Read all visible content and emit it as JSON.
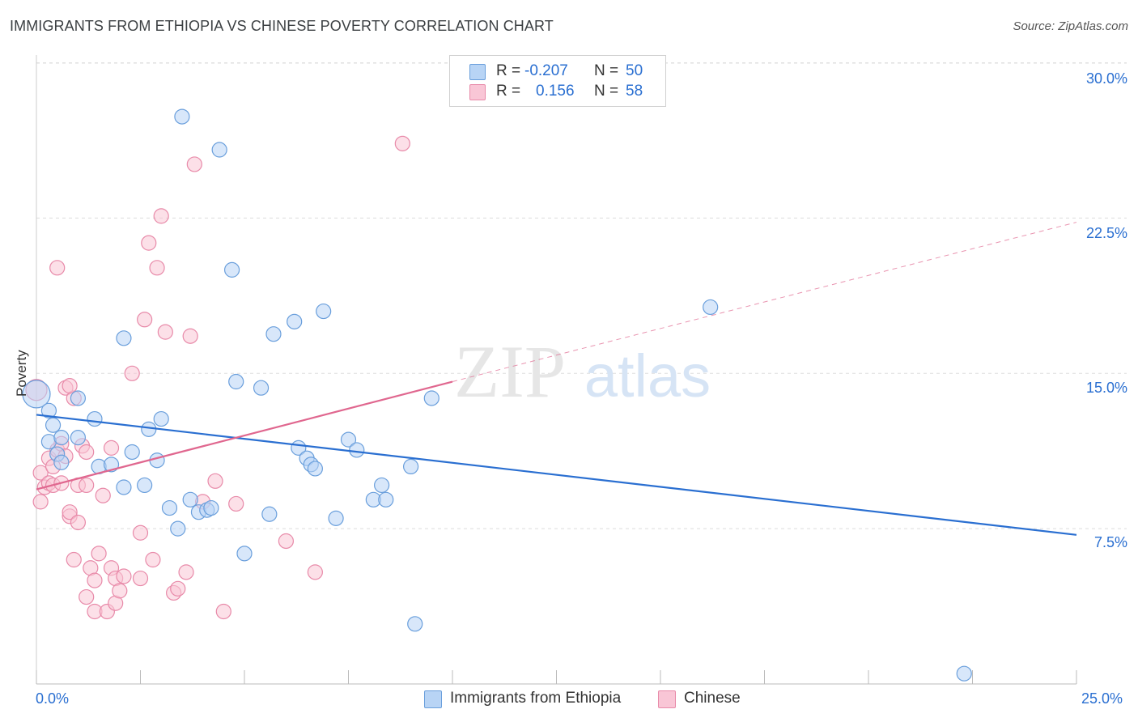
{
  "title": "IMMIGRANTS FROM ETHIOPIA VS CHINESE POVERTY CORRELATION CHART",
  "source": "Source: ZipAtlas.com",
  "watermark": {
    "zip": "ZIP",
    "atlas": "atlas"
  },
  "colors": {
    "ethiopia_fill": "#b8d4f5",
    "ethiopia_stroke": "#6a9fdc",
    "ethiopia_line": "#2a6fd1",
    "chinese_fill": "#f9c6d6",
    "chinese_stroke": "#e88aa9",
    "chinese_line": "#e0678f",
    "axis_text": "#2a6fd1",
    "grid": "#dddddd"
  },
  "legend": {
    "rows": [
      {
        "r_label": "R =",
        "r_value": "-0.207",
        "n_label": "N =",
        "n_value": "50"
      },
      {
        "r_label": "R =",
        "r_value": "0.156",
        "n_label": "N =",
        "n_value": "58"
      }
    ],
    "bottom": [
      {
        "name": "Immigrants from Ethiopia"
      },
      {
        "name": "Chinese"
      }
    ]
  },
  "chart_data": {
    "type": "scatter",
    "title": "IMMIGRANTS FROM ETHIOPIA VS CHINESE POVERTY CORRELATION CHART",
    "xlabel": "",
    "ylabel": "Poverty",
    "xlim": [
      0,
      25
    ],
    "ylim": [
      0,
      31
    ],
    "x_tick_labels": [
      "0.0%",
      "25.0%"
    ],
    "y_ticks": [
      7.5,
      15.0,
      22.5,
      30.0
    ],
    "y_tick_labels": [
      "7.5%",
      "15.0%",
      "22.5%",
      "30.0%"
    ],
    "grid": true,
    "legend_position": "top-center",
    "series": [
      {
        "name": "Immigrants from Ethiopia",
        "r": -0.207,
        "n": 50,
        "trend": {
          "x0": 0,
          "y0": 13.0,
          "x1": 25,
          "y1": 7.2
        },
        "points": [
          [
            0.0,
            14.0
          ],
          [
            0.3,
            13.2
          ],
          [
            0.4,
            12.5
          ],
          [
            0.3,
            11.7
          ],
          [
            0.6,
            11.9
          ],
          [
            0.5,
            11.1
          ],
          [
            0.6,
            10.7
          ],
          [
            1.0,
            13.8
          ],
          [
            1.0,
            11.9
          ],
          [
            1.4,
            12.8
          ],
          [
            1.5,
            10.5
          ],
          [
            1.8,
            10.6
          ],
          [
            2.1,
            9.5
          ],
          [
            2.3,
            11.2
          ],
          [
            2.6,
            9.6
          ],
          [
            2.7,
            12.3
          ],
          [
            2.9,
            10.8
          ],
          [
            3.0,
            12.8
          ],
          [
            3.2,
            8.5
          ],
          [
            3.4,
            7.5
          ],
          [
            3.7,
            8.9
          ],
          [
            3.9,
            8.3
          ],
          [
            4.1,
            8.4
          ],
          [
            4.2,
            8.5
          ],
          [
            3.5,
            27.4
          ],
          [
            4.4,
            25.8
          ],
          [
            4.7,
            20.0
          ],
          [
            4.8,
            14.6
          ],
          [
            5.0,
            6.3
          ],
          [
            5.4,
            14.3
          ],
          [
            5.6,
            8.2
          ],
          [
            5.7,
            16.9
          ],
          [
            6.2,
            17.5
          ],
          [
            6.3,
            11.4
          ],
          [
            6.5,
            10.9
          ],
          [
            6.6,
            10.6
          ],
          [
            6.7,
            10.4
          ],
          [
            6.9,
            18.0
          ],
          [
            7.2,
            8.0
          ],
          [
            7.5,
            11.8
          ],
          [
            7.7,
            11.3
          ],
          [
            8.1,
            8.9
          ],
          [
            8.3,
            9.6
          ],
          [
            8.4,
            8.9
          ],
          [
            9.0,
            10.5
          ],
          [
            9.1,
            2.9
          ],
          [
            9.5,
            13.8
          ],
          [
            16.2,
            18.2
          ],
          [
            22.3,
            0.5
          ],
          [
            2.1,
            16.7
          ]
        ]
      },
      {
        "name": "Chinese",
        "r": 0.156,
        "n": 58,
        "trend": {
          "x0": 0,
          "y0": 9.4,
          "x1": 10.0,
          "y1": 14.6
        },
        "trend_dashed": {
          "x0": 10.0,
          "y0": 14.6,
          "x1": 25,
          "y1": 22.3
        },
        "points": [
          [
            0.0,
            14.2
          ],
          [
            0.1,
            10.2
          ],
          [
            0.1,
            8.8
          ],
          [
            0.2,
            9.5
          ],
          [
            0.3,
            10.9
          ],
          [
            0.3,
            9.7
          ],
          [
            0.4,
            9.6
          ],
          [
            0.4,
            10.5
          ],
          [
            0.5,
            20.1
          ],
          [
            0.5,
            11.3
          ],
          [
            0.6,
            11.6
          ],
          [
            0.7,
            14.3
          ],
          [
            0.7,
            11.0
          ],
          [
            0.8,
            8.1
          ],
          [
            0.8,
            8.3
          ],
          [
            0.9,
            13.8
          ],
          [
            0.9,
            6.0
          ],
          [
            1.0,
            9.6
          ],
          [
            1.0,
            7.8
          ],
          [
            1.1,
            11.5
          ],
          [
            1.2,
            4.2
          ],
          [
            1.2,
            11.2
          ],
          [
            1.3,
            5.6
          ],
          [
            1.4,
            5.0
          ],
          [
            1.4,
            3.5
          ],
          [
            1.5,
            6.3
          ],
          [
            1.6,
            9.1
          ],
          [
            1.7,
            3.5
          ],
          [
            1.8,
            5.6
          ],
          [
            1.8,
            11.4
          ],
          [
            1.9,
            5.1
          ],
          [
            1.9,
            3.9
          ],
          [
            2.0,
            4.5
          ],
          [
            2.1,
            5.2
          ],
          [
            2.3,
            15.0
          ],
          [
            2.5,
            5.1
          ],
          [
            2.6,
            17.6
          ],
          [
            2.7,
            21.3
          ],
          [
            2.8,
            6.0
          ],
          [
            2.9,
            20.1
          ],
          [
            3.0,
            22.6
          ],
          [
            3.1,
            17.0
          ],
          [
            3.3,
            4.4
          ],
          [
            3.4,
            4.6
          ],
          [
            3.6,
            5.4
          ],
          [
            3.7,
            16.8
          ],
          [
            3.8,
            25.1
          ],
          [
            4.0,
            8.8
          ],
          [
            4.3,
            9.8
          ],
          [
            4.5,
            3.5
          ],
          [
            4.8,
            8.7
          ],
          [
            6.0,
            6.9
          ],
          [
            6.7,
            5.4
          ],
          [
            2.5,
            7.3
          ],
          [
            0.8,
            14.4
          ],
          [
            0.6,
            9.7
          ],
          [
            1.2,
            9.6
          ],
          [
            8.8,
            26.1
          ]
        ]
      }
    ]
  }
}
